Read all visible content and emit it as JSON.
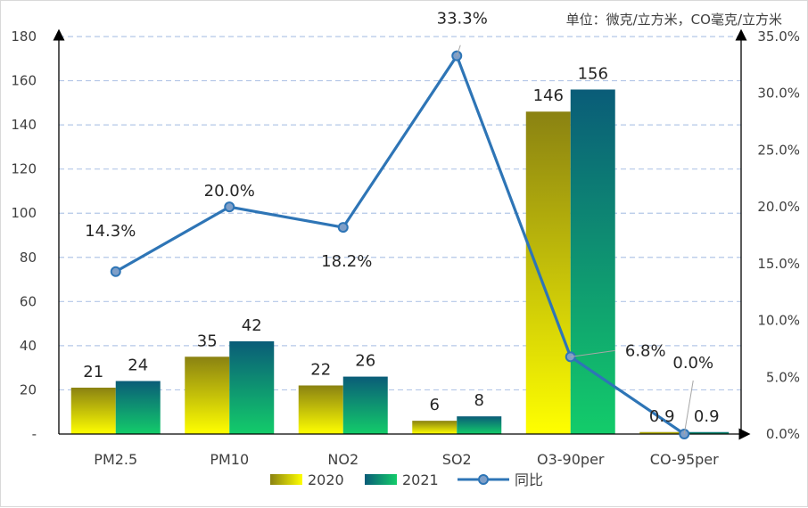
{
  "chart_data": {
    "type": "bar",
    "unit_label": "单位：微克/立方米，CO毫克/立方米",
    "categories": [
      "PM2.5",
      "PM10",
      "NO2",
      "SO2",
      "O3-90per",
      "CO-95per"
    ],
    "series": [
      {
        "name": "2020",
        "kind": "bar",
        "axis": "left",
        "values": [
          21,
          35,
          22,
          6,
          146,
          0.9
        ],
        "labels": [
          "21",
          "35",
          "22",
          "6",
          "146",
          "0.9"
        ]
      },
      {
        "name": "2021",
        "kind": "bar",
        "axis": "left",
        "values": [
          24,
          42,
          26,
          8,
          156,
          0.9
        ],
        "labels": [
          "24",
          "42",
          "26",
          "8",
          "156",
          "0.9"
        ]
      },
      {
        "name": "同比",
        "kind": "line",
        "axis": "right",
        "values": [
          14.3,
          20.0,
          18.2,
          33.3,
          6.8,
          0.0
        ],
        "labels": [
          "14.3%",
          "20.0%",
          "18.2%",
          "33.3%",
          "6.8%",
          "0.0%"
        ]
      }
    ],
    "left_axis": {
      "min": 0,
      "max": 180,
      "step": 20,
      "tick_labels": [
        "-",
        "20",
        "40",
        "60",
        "80",
        "100",
        "120",
        "140",
        "160",
        "180"
      ]
    },
    "right_axis": {
      "min": 0,
      "max": 35,
      "step": 5,
      "tick_labels": [
        "0.0%",
        "5.0%",
        "10.0%",
        "15.0%",
        "20.0%",
        "25.0%",
        "30.0%",
        "35.0%"
      ]
    },
    "grid": true,
    "legend_position": "bottom",
    "colors": {
      "bar2020_top": "#8a8212",
      "bar2020_bottom": "#ffff00",
      "bar2021_top": "#0a5c78",
      "bar2021_bottom": "#13cc6a",
      "line": "#2e75b6",
      "grid": "#b4c7e7",
      "axis": "#000000"
    }
  }
}
